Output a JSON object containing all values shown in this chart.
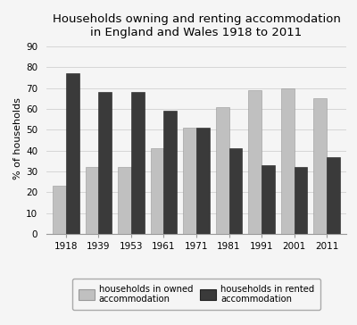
{
  "title_line1": "Households owning and renting accommodation",
  "title_line2": "in England and Wales 1918 to 2011",
  "years": [
    "1918",
    "1939",
    "1953",
    "1961",
    "1971",
    "1981",
    "1991",
    "2001",
    "2011"
  ],
  "owned": [
    23,
    32,
    32,
    41,
    51,
    61,
    69,
    70,
    65
  ],
  "rented": [
    77,
    68,
    68,
    59,
    51,
    41,
    33,
    32,
    37
  ],
  "owned_color": "#c0c0c0",
  "rented_color": "#3a3a3a",
  "ylabel": "% of households",
  "yticks": [
    0,
    10,
    20,
    30,
    40,
    50,
    60,
    70,
    80,
    90
  ],
  "ylim": [
    0,
    92
  ],
  "legend_owned": "households in owned\naccommodation",
  "legend_rented": "households in rented\naccommodation",
  "bar_width": 0.4,
  "background_color": "#f5f5f5",
  "title_fontsize": 9.5,
  "axis_fontsize": 8,
  "tick_fontsize": 7.5
}
